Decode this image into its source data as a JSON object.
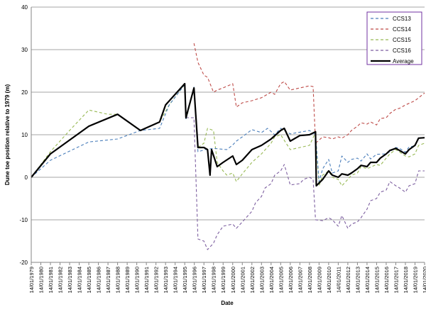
{
  "chart_data": {
    "type": "line",
    "title": "",
    "xlabel": "Date",
    "ylabel": "Dune toe position relative to 1979 (m)",
    "ylim": [
      -20,
      40
    ],
    "yticks": [
      -20,
      -10,
      0,
      10,
      20,
      30,
      40
    ],
    "xlim": [
      "1979-01-14",
      "2020-01-14"
    ],
    "xtick_labels": [
      "14/01/1979",
      "14/01/1980",
      "14/01/1981",
      "14/01/1982",
      "14/01/1983",
      "14/01/1984",
      "14/01/1985",
      "14/01/1986",
      "14/01/1987",
      "14/01/1988",
      "14/01/1989",
      "14/01/1990",
      "14/01/1991",
      "14/01/1992",
      "14/01/1993",
      "14/01/1994",
      "14/01/1995",
      "14/01/1996",
      "14/01/1997",
      "14/01/1998",
      "14/01/1999",
      "14/01/2000",
      "14/01/2001",
      "14/01/2002",
      "14/01/2003",
      "14/01/2004",
      "14/01/2005",
      "14/01/2006",
      "14/01/2007",
      "14/01/2008",
      "14/01/2009",
      "14/01/2010",
      "14/01/2011",
      "14/01/2012",
      "14/01/2013",
      "14/01/2014",
      "14/01/2015",
      "14/01/2016",
      "14/01/2017",
      "14/01/2018",
      "14/01/2019",
      "14/01/2020"
    ],
    "grid": "horizontal",
    "legend_position": "top-right",
    "series": [
      {
        "name": "CCS13",
        "color": "#4a7ebb",
        "dash": "dashed",
        "points": [
          [
            "1979-01-14",
            0
          ],
          [
            "1981-01-14",
            4
          ],
          [
            "1985-01-14",
            8.3
          ],
          [
            "1988-01-14",
            9
          ],
          [
            "1990-06-01",
            11
          ],
          [
            "1992-06-01",
            11.5
          ],
          [
            "1993-06-01",
            17
          ],
          [
            "1995-01-14",
            21.8
          ],
          [
            "1995-03-01",
            13.5
          ],
          [
            "1996-01-01",
            21.2
          ],
          [
            "1996-06-01",
            6
          ],
          [
            "1997-03-01",
            6.5
          ],
          [
            "1998-01-14",
            6.8
          ],
          [
            "1999-06-01",
            6.5
          ],
          [
            "2000-01-14",
            7.6
          ],
          [
            "2000-06-01",
            8.5
          ],
          [
            "2001-01-14",
            9.5
          ],
          [
            "2002-01-14",
            11.2
          ],
          [
            "2003-01-14",
            10.5
          ],
          [
            "2003-09-01",
            11.5
          ],
          [
            "2004-06-01",
            10
          ],
          [
            "2005-01-14",
            11.5
          ],
          [
            "2006-01-14",
            10.2
          ],
          [
            "2007-01-14",
            10.6
          ],
          [
            "2008-01-14",
            11
          ],
          [
            "2008-09-01",
            10
          ],
          [
            "2009-01-14",
            -1
          ],
          [
            "2009-06-01",
            2
          ],
          [
            "2010-01-14",
            4.2
          ],
          [
            "2010-06-01",
            1
          ],
          [
            "2011-01-14",
            1.5
          ],
          [
            "2011-06-01",
            5
          ],
          [
            "2012-01-14",
            3.5
          ],
          [
            "2012-06-01",
            4.2
          ],
          [
            "2013-01-14",
            4.5
          ],
          [
            "2013-06-01",
            3.8
          ],
          [
            "2014-01-14",
            5.5
          ],
          [
            "2014-06-01",
            4.3
          ],
          [
            "2015-01-14",
            5.4
          ],
          [
            "2016-01-14",
            5.5
          ],
          [
            "2016-06-01",
            6
          ],
          [
            "2017-01-14",
            7
          ],
          [
            "2017-06-01",
            6.8
          ],
          [
            "2018-01-14",
            5.9
          ],
          [
            "2018-06-01",
            7.1
          ],
          [
            "2019-01-14",
            7.4
          ],
          [
            "2019-06-01",
            9.4
          ],
          [
            "2020-01-14",
            9.2
          ]
        ]
      },
      {
        "name": "CCS14",
        "color": "#be4b48",
        "dash": "dashed",
        "points": [
          [
            "1996-01-01",
            31.5
          ],
          [
            "1996-06-01",
            27
          ],
          [
            "1997-01-14",
            24
          ],
          [
            "1997-06-01",
            23.5
          ],
          [
            "1998-01-14",
            20
          ],
          [
            "1998-06-01",
            20.5
          ],
          [
            "1999-01-14",
            21
          ],
          [
            "2000-01-14",
            22
          ],
          [
            "2000-06-01",
            16.5
          ],
          [
            "2001-01-14",
            17.5
          ],
          [
            "2002-01-14",
            18
          ],
          [
            "2003-01-14",
            18.7
          ],
          [
            "2004-01-14",
            20
          ],
          [
            "2004-06-01",
            19.5
          ],
          [
            "2005-01-14",
            22
          ],
          [
            "2005-06-01",
            22.5
          ],
          [
            "2006-01-14",
            20.5
          ],
          [
            "2007-01-14",
            21
          ],
          [
            "2008-01-14",
            21.5
          ],
          [
            "2008-06-01",
            21.3
          ],
          [
            "2008-09-01",
            8
          ],
          [
            "2009-06-01",
            9.5
          ],
          [
            "2010-01-14",
            9.3
          ],
          [
            "2010-06-01",
            9
          ],
          [
            "2011-01-14",
            9.5
          ],
          [
            "2011-06-01",
            9.2
          ],
          [
            "2012-01-14",
            10
          ],
          [
            "2012-06-01",
            11
          ],
          [
            "2013-01-14",
            12
          ],
          [
            "2013-06-01",
            12.8
          ],
          [
            "2014-01-14",
            12.5
          ],
          [
            "2014-06-01",
            13
          ],
          [
            "2015-01-14",
            12.3
          ],
          [
            "2015-06-01",
            13.8
          ],
          [
            "2016-01-14",
            14
          ],
          [
            "2016-06-01",
            15
          ],
          [
            "2017-01-14",
            16
          ],
          [
            "2017-06-01",
            16.2
          ],
          [
            "2018-01-14",
            17
          ],
          [
            "2019-01-14",
            18
          ],
          [
            "2020-01-14",
            19.8
          ]
        ]
      },
      {
        "name": "CCS15",
        "color": "#98b954",
        "dash": "dashed",
        "points": [
          [
            "1979-01-14",
            0
          ],
          [
            "1981-01-14",
            6
          ],
          [
            "1983-01-14",
            11
          ],
          [
            "1985-01-14",
            15.8
          ],
          [
            "1987-01-14",
            14.8
          ],
          [
            "1988-01-14",
            14.8
          ],
          [
            "1990-06-01",
            11
          ],
          [
            "1992-06-01",
            13
          ],
          [
            "1993-06-01",
            17
          ],
          [
            "1995-01-14",
            21.8
          ],
          [
            "1995-03-01",
            13.5
          ],
          [
            "1996-01-01",
            20.7
          ],
          [
            "1996-06-01",
            7
          ],
          [
            "1997-01-14",
            8
          ],
          [
            "1997-06-01",
            11.5
          ],
          [
            "1998-01-14",
            11
          ],
          [
            "1998-06-01",
            3.5
          ],
          [
            "1999-01-14",
            1.5
          ],
          [
            "1999-06-01",
            0.5
          ],
          [
            "2000-01-14",
            1
          ],
          [
            "2000-06-01",
            -1
          ],
          [
            "2001-01-14",
            0.8
          ],
          [
            "2002-01-14",
            3.5
          ],
          [
            "2003-01-14",
            5.5
          ],
          [
            "2004-01-14",
            8
          ],
          [
            "2004-06-01",
            9.5
          ],
          [
            "2005-01-14",
            10
          ],
          [
            "2006-01-14",
            6.5
          ],
          [
            "2007-01-14",
            7
          ],
          [
            "2008-01-14",
            7.5
          ],
          [
            "2008-09-01",
            10.5
          ],
          [
            "2009-01-14",
            -2
          ],
          [
            "2009-06-01",
            0.5
          ],
          [
            "2010-01-14",
            1.5
          ],
          [
            "2010-06-01",
            0
          ],
          [
            "2011-01-14",
            -0.5
          ],
          [
            "2011-06-01",
            -2
          ],
          [
            "2012-01-14",
            -0.5
          ],
          [
            "2012-06-01",
            0.5
          ],
          [
            "2013-01-14",
            1
          ],
          [
            "2013-06-01",
            2.5
          ],
          [
            "2014-01-14",
            2
          ],
          [
            "2015-01-14",
            3
          ],
          [
            "2015-06-01",
            2.8
          ],
          [
            "2016-01-14",
            4.5
          ],
          [
            "2016-06-01",
            5.5
          ],
          [
            "2017-01-14",
            6.5
          ],
          [
            "2018-01-14",
            5
          ],
          [
            "2018-06-01",
            4.8
          ],
          [
            "2019-01-14",
            5.5
          ],
          [
            "2019-06-01",
            7.5
          ],
          [
            "2020-01-14",
            8
          ]
        ]
      },
      {
        "name": "CCS16",
        "color": "#7d5fa0",
        "dash": "dashed",
        "points": [
          [
            "1995-03-01",
            14
          ],
          [
            "1996-01-01",
            14
          ],
          [
            "1996-06-01",
            -14.5
          ],
          [
            "1997-01-14",
            -15
          ],
          [
            "1997-06-01",
            -17
          ],
          [
            "1998-01-14",
            -15.5
          ],
          [
            "1998-06-01",
            -13.5
          ],
          [
            "1999-01-14",
            -11.5
          ],
          [
            "2000-01-14",
            -11
          ],
          [
            "2000-06-01",
            -12
          ],
          [
            "2001-01-14",
            -10.5
          ],
          [
            "2002-01-14",
            -8
          ],
          [
            "2002-06-01",
            -6
          ],
          [
            "2003-01-14",
            -4.5
          ],
          [
            "2003-06-01",
            -2.5
          ],
          [
            "2004-01-14",
            -1.5
          ],
          [
            "2004-06-01",
            0.5
          ],
          [
            "2005-01-14",
            1.5
          ],
          [
            "2005-06-01",
            3
          ],
          [
            "2006-01-14",
            -1.8
          ],
          [
            "2007-01-14",
            -1.5
          ],
          [
            "2007-06-01",
            -0.5
          ],
          [
            "2008-01-14",
            0
          ],
          [
            "2008-06-01",
            -0.5
          ],
          [
            "2008-09-01",
            -10
          ],
          [
            "2009-06-01",
            -10.2
          ],
          [
            "2010-01-14",
            -9.5
          ],
          [
            "2010-06-01",
            -10
          ],
          [
            "2011-01-14",
            -11.5
          ],
          [
            "2011-06-01",
            -9
          ],
          [
            "2012-01-14",
            -12
          ],
          [
            "2012-06-01",
            -11
          ],
          [
            "2013-01-14",
            -10.5
          ],
          [
            "2013-06-01",
            -9.5
          ],
          [
            "2014-01-14",
            -7.5
          ],
          [
            "2014-06-01",
            -5.5
          ],
          [
            "2015-01-14",
            -5
          ],
          [
            "2015-06-01",
            -3.5
          ],
          [
            "2016-01-14",
            -3
          ],
          [
            "2016-06-01",
            -1
          ],
          [
            "2017-01-14",
            -2
          ],
          [
            "2017-06-01",
            -2.5
          ],
          [
            "2018-01-14",
            -3.5
          ],
          [
            "2018-06-01",
            -2
          ],
          [
            "2019-01-14",
            -1.5
          ],
          [
            "2019-06-01",
            1.5
          ],
          [
            "2020-01-14",
            1.5
          ]
        ]
      },
      {
        "name": "Average",
        "color": "#000000",
        "dash": "solid",
        "points": [
          [
            "1979-01-14",
            0
          ],
          [
            "1981-01-14",
            5.5
          ],
          [
            "1985-01-14",
            12
          ],
          [
            "1988-01-14",
            14.8
          ],
          [
            "1990-06-01",
            11
          ],
          [
            "1992-06-01",
            13
          ],
          [
            "1993-01-14",
            17
          ],
          [
            "1995-01-14",
            22
          ],
          [
            "1995-03-01",
            14
          ],
          [
            "1996-01-01",
            21
          ],
          [
            "1996-06-01",
            7
          ],
          [
            "1997-01-14",
            7
          ],
          [
            "1997-06-01",
            6.5
          ],
          [
            "1997-09-01",
            0.5
          ],
          [
            "1997-11-01",
            6.5
          ],
          [
            "1998-06-01",
            2.5
          ],
          [
            "1999-01-14",
            3.5
          ],
          [
            "2000-01-14",
            5
          ],
          [
            "2000-06-01",
            3
          ],
          [
            "2001-01-14",
            4
          ],
          [
            "2002-01-14",
            6.5
          ],
          [
            "2003-01-14",
            7.5
          ],
          [
            "2004-01-14",
            9
          ],
          [
            "2005-01-14",
            11
          ],
          [
            "2005-06-01",
            11.5
          ],
          [
            "2006-01-14",
            8.5
          ],
          [
            "2007-01-14",
            9.8
          ],
          [
            "2008-01-14",
            10
          ],
          [
            "2008-09-01",
            10.7
          ],
          [
            "2008-10-01",
            -2
          ],
          [
            "2009-06-01",
            -0.5
          ],
          [
            "2010-01-14",
            1.5
          ],
          [
            "2010-06-01",
            0.5
          ],
          [
            "2011-01-14",
            0
          ],
          [
            "2011-06-01",
            0.8
          ],
          [
            "2012-01-14",
            0.5
          ],
          [
            "2012-06-01",
            1
          ],
          [
            "2013-01-14",
            2
          ],
          [
            "2013-06-01",
            2.8
          ],
          [
            "2014-01-14",
            2.5
          ],
          [
            "2014-06-01",
            3.5
          ],
          [
            "2015-01-14",
            3.5
          ],
          [
            "2015-06-01",
            4.5
          ],
          [
            "2016-01-14",
            5.5
          ],
          [
            "2016-06-01",
            6.3
          ],
          [
            "2017-01-14",
            6.8
          ],
          [
            "2018-01-14",
            5.5
          ],
          [
            "2018-06-01",
            6.5
          ],
          [
            "2019-01-14",
            7.5
          ],
          [
            "2019-06-01",
            9.2
          ],
          [
            "2020-01-14",
            9.3
          ]
        ]
      }
    ]
  }
}
